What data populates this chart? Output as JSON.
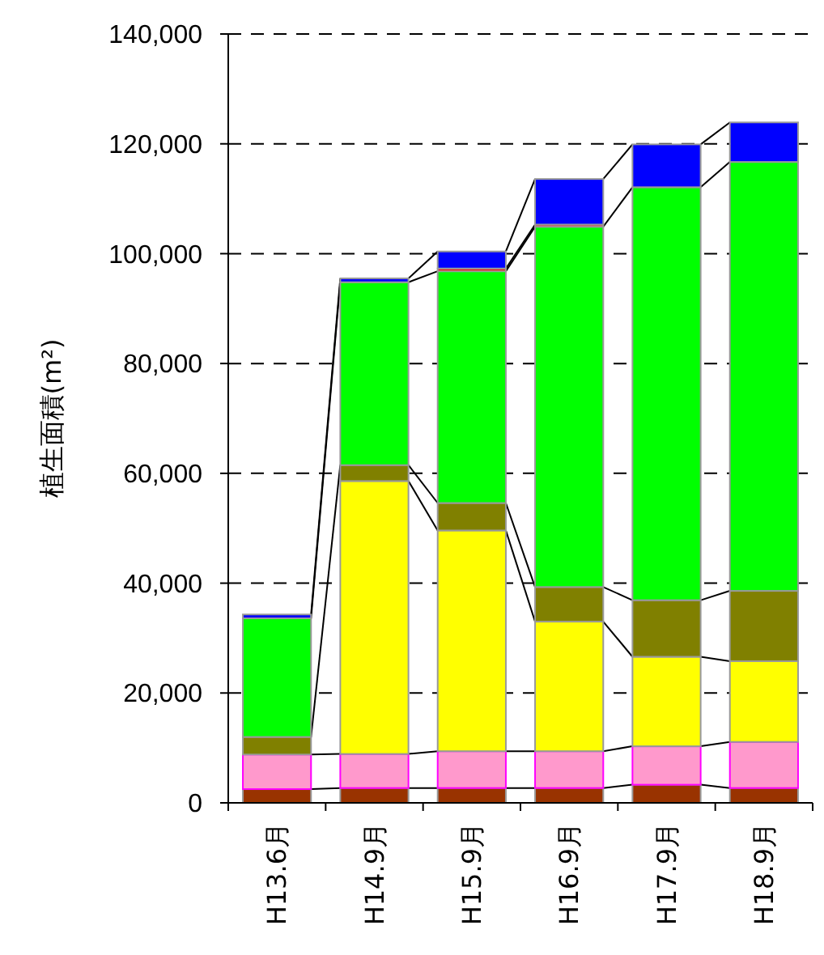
{
  "chart_data": {
    "type": "bar",
    "stacked": true,
    "ylabel": "植生面積(m²)",
    "categories": [
      "H13.6月",
      "H14.9月",
      "H15.9月",
      "H16.9月",
      "H17.9月",
      "H18.9月"
    ],
    "series": [
      {
        "color": "#993300",
        "values": [
          2500,
          2700,
          2700,
          2700,
          3300,
          2700
        ]
      },
      {
        "color": "#ff99cc",
        "values": [
          6300,
          6200,
          6700,
          6700,
          7000,
          8400
        ]
      },
      {
        "color": "#ffff00",
        "values": [
          0,
          49700,
          40200,
          23600,
          16300,
          14700
        ]
      },
      {
        "color": "#808000",
        "values": [
          3200,
          2900,
          5000,
          6300,
          10300,
          12800
        ]
      },
      {
        "color": "#00ff00",
        "values": [
          21600,
          33300,
          42200,
          65600,
          75200,
          78100
        ]
      },
      {
        "color": "#ff0000",
        "values": [
          0,
          0,
          500,
          400,
          0,
          0
        ]
      },
      {
        "color": "#0000ff",
        "values": [
          700,
          700,
          3100,
          8300,
          7800,
          7200
        ]
      }
    ],
    "ylim": [
      0,
      140000
    ],
    "yticks": [
      {
        "value": 0,
        "label": "0"
      },
      {
        "value": 20000,
        "label": "20,000"
      },
      {
        "value": 40000,
        "label": "40,000"
      },
      {
        "value": 60000,
        "label": "60,000"
      },
      {
        "value": 80000,
        "label": "80,000"
      },
      {
        "value": 100000,
        "label": "100,000"
      },
      {
        "value": 120000,
        "label": "120,000"
      },
      {
        "value": 140000,
        "label": "140,000"
      }
    ],
    "grid": "y"
  }
}
